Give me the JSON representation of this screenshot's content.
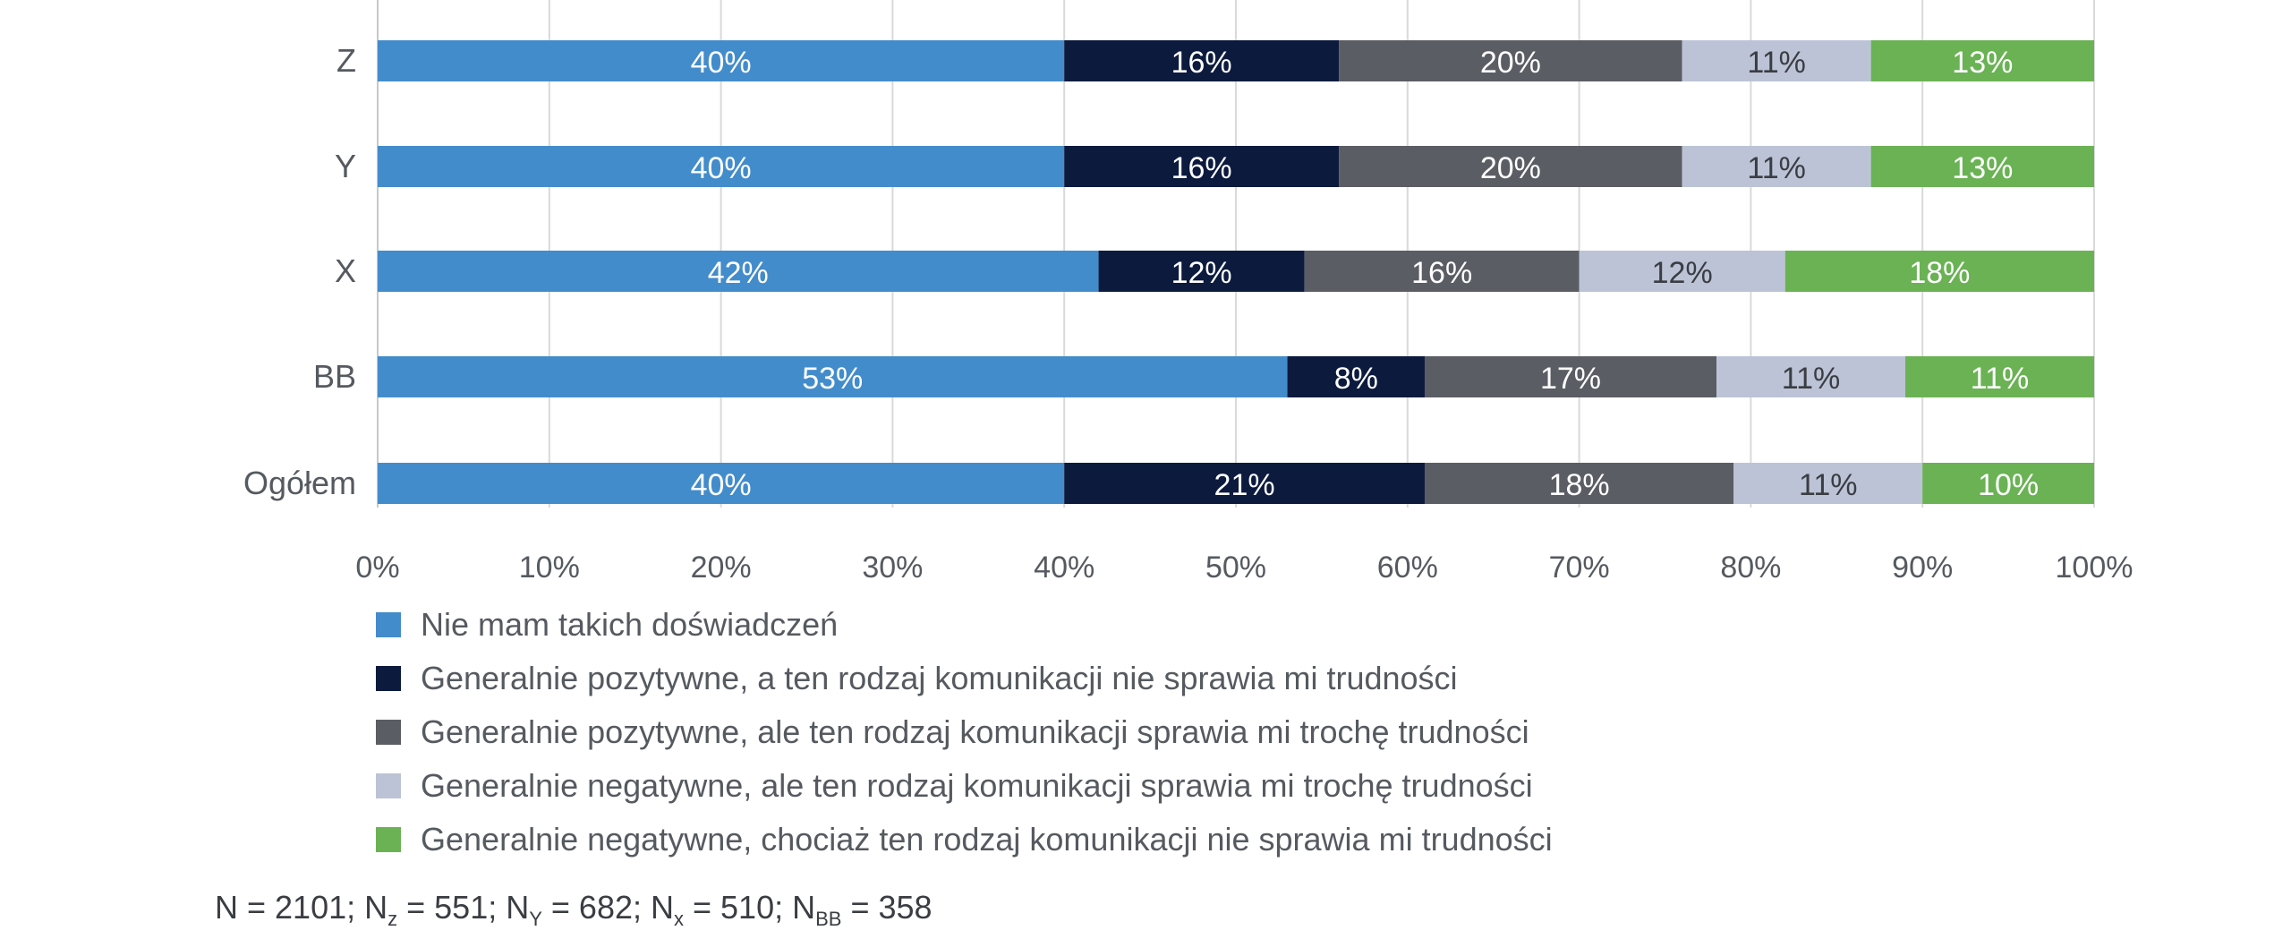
{
  "chart_data": {
    "type": "bar",
    "orientation": "horizontal",
    "stacked": true,
    "categories": [
      "Z",
      "Y",
      "X",
      "BB",
      "Ogółem"
    ],
    "series": [
      {
        "name": "Nie mam takich doświadczeń",
        "color": "#438ccb",
        "label_color": "#ffffff",
        "values": [
          40,
          40,
          42,
          53,
          40
        ]
      },
      {
        "name": "Generalnie pozytywne, a ten rodzaj komunikacji nie sprawia mi trudności",
        "color": "#0c1a3e",
        "label_color": "#ffffff",
        "values": [
          16,
          16,
          12,
          8,
          21
        ]
      },
      {
        "name": "Generalnie pozytywne, ale ten rodzaj komunikacji sprawia mi trochę trudności",
        "color": "#5a5d63",
        "label_color": "#ffffff",
        "values": [
          20,
          20,
          16,
          17,
          18
        ]
      },
      {
        "name": "Generalnie negatywne, ale ten rodzaj komunikacji sprawia mi trochę trudności",
        "color": "#bcc3d6",
        "label_color": "#3a3d42",
        "values": [
          11,
          11,
          12,
          11,
          11
        ]
      },
      {
        "name": "Generalnie negatywne, chociaż ten rodzaj komunikacji nie sprawia mi trudności",
        "color": "#6ab254",
        "label_color": "#ffffff",
        "values": [
          13,
          13,
          18,
          11,
          10
        ]
      }
    ],
    "xlim": [
      0,
      100
    ],
    "x_ticks": [
      "0%",
      "10%",
      "20%",
      "30%",
      "40%",
      "50%",
      "60%",
      "70%",
      "80%",
      "90%",
      "100%"
    ],
    "grid": true,
    "legend_position": "bottom"
  },
  "note": {
    "n_total": "N = 2101; N",
    "z_sub": "z",
    "z_val": " = 551; N",
    "y_sub": "Y",
    "y_val": " = 682; N",
    "x_sub": "x",
    "x_val": " = 510; N",
    "bb_sub": "BB",
    "bb_val": " = 358"
  }
}
